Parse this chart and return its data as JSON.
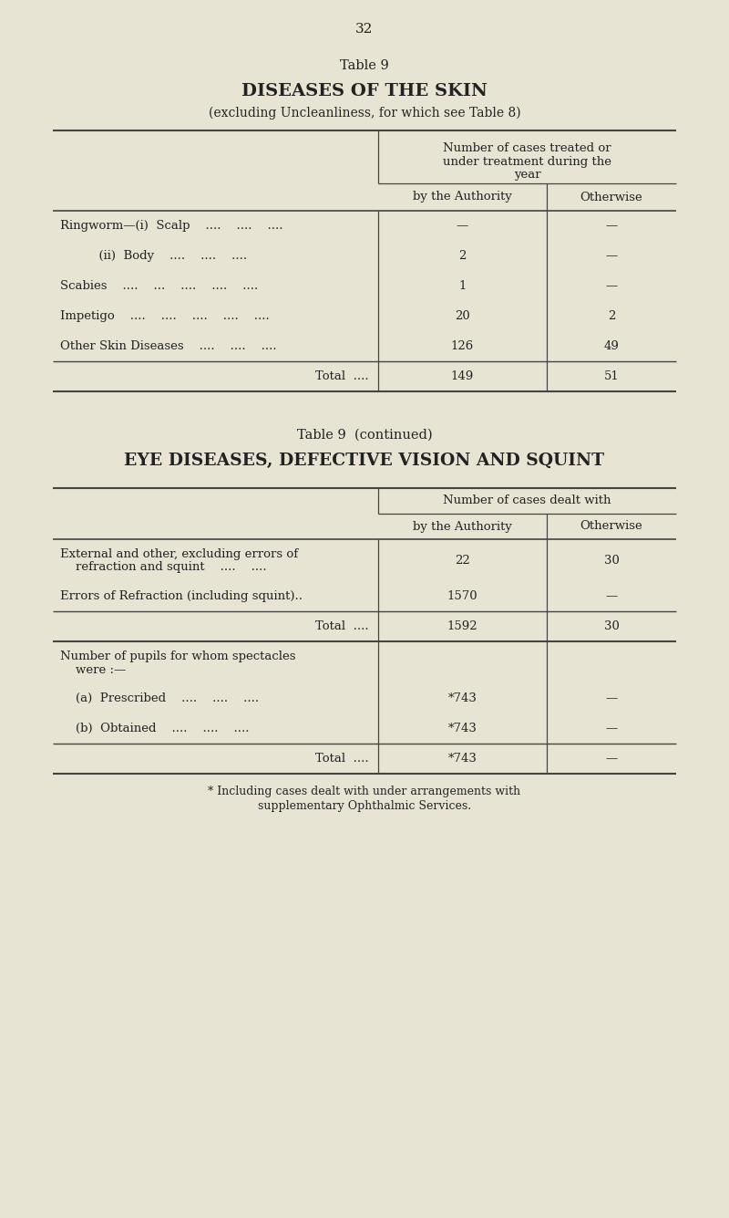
{
  "bg_color": "#e8e4d4",
  "text_color": "#222222",
  "page_number": "32",
  "table1": {
    "title_label": "Table 9",
    "title_main": "DISEASES OF THE SKIN",
    "title_sub": "(excluding Uncleanliness, for which see Table 8)",
    "header_top": "Number of cases treated or\nunder treatment during the\nyear",
    "header_col1a": "by the Authority",
    "header_col1b": "Otherwise",
    "rows": [
      {
        "label": "Ringworm—(i)  Scalp    ....    ....    ....",
        "val1": "—",
        "val2": "—"
      },
      {
        "label": "          (ii)  Body    ....    ....    ....",
        "val1": "2",
        "val2": "—"
      },
      {
        "label": "Scabies    ....    ...    ....    ....    ....",
        "val1": "1",
        "val2": "—"
      },
      {
        "label": "Impetigo    ....    ....    ....    ....    ....",
        "val1": "20",
        "val2": "2"
      },
      {
        "label": "Other Skin Diseases    ....    ....    ....",
        "val1": "126",
        "val2": "49"
      }
    ],
    "total_row": {
      "label": "Total  ....",
      "val1": "149",
      "val2": "51"
    }
  },
  "table2": {
    "title_label": "Table 9  (continued)",
    "title_main": "EYE DISEASES, DEFECTIVE VISION AND SQUINT",
    "header_top": "Number of cases dealt with",
    "header_col1a": "by the Authority",
    "header_col1b": "Otherwise",
    "rows": [
      {
        "label": "External and other, excluding errors of\n    refraction and squint    ....    ....",
        "val1": "22",
        "val2": "30",
        "tall": true
      },
      {
        "label": "Errors of Refraction (including squint)..",
        "val1": "1570",
        "val2": "—",
        "tall": false
      }
    ],
    "total_row": {
      "label": "Total  ....",
      "val1": "1592",
      "val2": "30"
    },
    "spectacles_header_lines": [
      "Number of pupils for whom spectacles",
      "    were :—"
    ],
    "spectacles_rows": [
      {
        "label": "    (a)  Prescribed    ....    ....    ....",
        "val1": "*743",
        "val2": "—"
      },
      {
        "label": "    (b)  Obtained    ....    ....    ....",
        "val1": "*743",
        "val2": "—"
      }
    ],
    "spectacles_total": {
      "label": "Total  ....",
      "val1": "*743",
      "val2": "—"
    },
    "footnote_lines": [
      "* Including cases dealt with under arrangements with",
      "supplementary Ophthalmic Services."
    ]
  }
}
